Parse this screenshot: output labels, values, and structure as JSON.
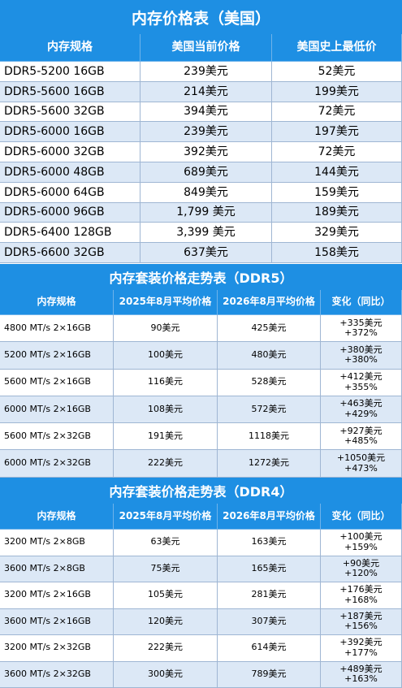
{
  "tables": [
    {
      "title": "内存价格表（美国）",
      "columns": [
        "内存规格",
        "美国当前价格",
        "美国史上最低价"
      ],
      "rows": [
        [
          "DDR5-5200 16GB",
          "239美元",
          "52美元"
        ],
        [
          "DDR5-5600 16GB",
          "214美元",
          "199美元"
        ],
        [
          "DDR5-5600 32GB",
          "394美元",
          "72美元"
        ],
        [
          "DDR5-6000 16GB",
          "239美元",
          "197美元"
        ],
        [
          "DDR5-6000 32GB",
          "392美元",
          "72美元"
        ],
        [
          "DDR5-6000 48GB",
          "689美元",
          "144美元"
        ],
        [
          "DDR5-6000 64GB",
          "849美元",
          "159美元"
        ],
        [
          "DDR5-6000 96GB",
          "1,799 美元",
          "189美元"
        ],
        [
          "DDR5-6400 128GB",
          "3,399 美元",
          "329美元"
        ],
        [
          "DDR5-6600 32GB",
          "637美元",
          "158美元"
        ]
      ]
    },
    {
      "title": "内存套装价格走势表（DDR5）",
      "columns": [
        "内存规格",
        "2025年8月平均价格",
        "2026年8月平均价格",
        "变化（同比）"
      ],
      "rows": [
        [
          "4800 MT/s 2×16GB",
          "90美元",
          "425美元",
          [
            "+335美元",
            "+372%"
          ]
        ],
        [
          "5200 MT/s 2×16GB",
          "100美元",
          "480美元",
          [
            "+380美元",
            "+380%"
          ]
        ],
        [
          "5600 MT/s 2×16GB",
          "116美元",
          "528美元",
          [
            "+412美元",
            "+355%"
          ]
        ],
        [
          "6000 MT/s 2×16GB",
          "108美元",
          "572美元",
          [
            "+463美元",
            "+429%"
          ]
        ],
        [
          "5600 MT/s 2×32GB",
          "191美元",
          "1118美元",
          [
            "+927美元",
            "+485%"
          ]
        ],
        [
          "6000 MT/s 2×32GB",
          "222美元",
          "1272美元",
          [
            "+1050美元",
            "+473%"
          ]
        ]
      ]
    },
    {
      "title": "内存套装价格走势表（DDR4）",
      "columns": [
        "内存规格",
        "2025年8月平均价格",
        "2026年8月平均价格",
        "变化（同比）"
      ],
      "rows": [
        [
          "3200 MT/s 2×8GB",
          "63美元",
          "163美元",
          [
            "+100美元",
            "+159%"
          ]
        ],
        [
          "3600 MT/s 2×8GB",
          "75美元",
          "165美元",
          [
            "+90美元",
            "+120%"
          ]
        ],
        [
          "3200 MT/s 2×16GB",
          "105美元",
          "281美元",
          [
            "+176美元",
            "+168%"
          ]
        ],
        [
          "3600 MT/s 2×16GB",
          "120美元",
          "307美元",
          [
            "+187美元",
            "+156%"
          ]
        ],
        [
          "3200 MT/s 2×32GB",
          "222美元",
          "614美元",
          [
            "+392美元",
            "+177%"
          ]
        ],
        [
          "3600 MT/s 2×32GB",
          "300美元",
          "789美元",
          [
            "+489美元",
            "+163%"
          ]
        ]
      ]
    }
  ]
}
